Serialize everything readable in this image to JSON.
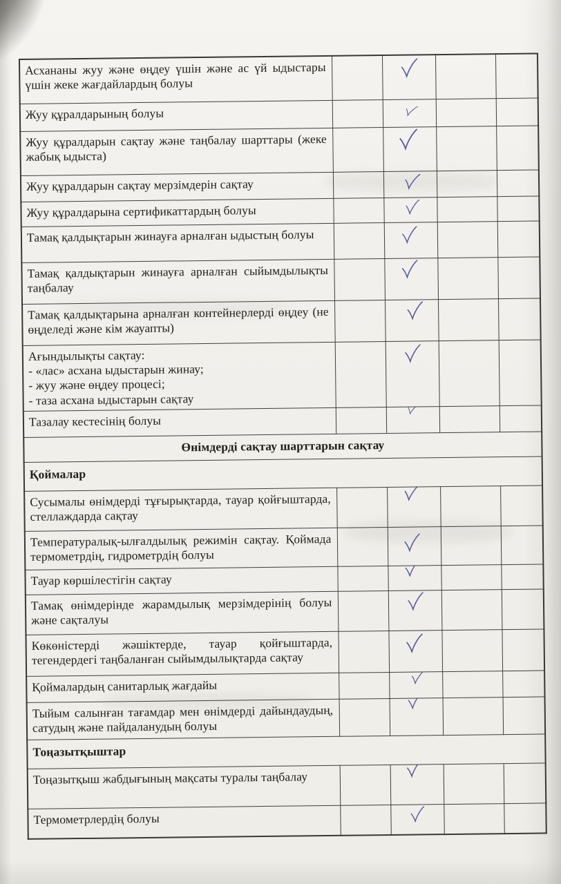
{
  "document": {
    "check_symbol": "✓",
    "check_ink_color": "#575b9f",
    "table": {
      "empty_column_count": 4,
      "checkmark_column": 2,
      "rows": [
        {
          "kind": "item",
          "text": "Асхананы жуу және өңдеу үшін және ас үй ыдыстары үшін жеке жағдайлардың болуы",
          "checked": true
        },
        {
          "kind": "item",
          "text": "Жуу құралдарының болуы",
          "checked": true
        },
        {
          "kind": "item",
          "text": "Жуу құралдарын сақтау және таңбалау шарттары (жеке жабық ыдыста)",
          "checked": true
        },
        {
          "kind": "item",
          "text": "Жуу құралдарын сақтау мерзімдерін сақтау",
          "checked": true
        },
        {
          "kind": "item",
          "text": "Жуу құралдарына сертификаттардың болуы",
          "checked": true
        },
        {
          "kind": "item",
          "text": "Тамақ қалдықтарын жинауға арналған ыдыстың болуы",
          "checked": true
        },
        {
          "kind": "item",
          "text": "Тамақ қалдықтарын жинауға арналған сыйымдылықты таңбалау",
          "checked": true
        },
        {
          "kind": "item",
          "text": "Тамақ қалдықтарына арналған контейнерлерді өңдеу (не өңделеді және кім жауапты)",
          "checked": true
        },
        {
          "kind": "item",
          "lines": [
            "Ағындылықты сақтау:",
            "- «лас» асхана ыдыстарын жинау;",
            "- жуу және өңдеу процесі;",
            "- таза асхана ыдыстарын сақтау"
          ],
          "checked": true
        },
        {
          "kind": "item",
          "text": "Тазалау кестесінің болуы",
          "checked": true
        },
        {
          "kind": "section-center",
          "text": "Өнімдерді сақтау шарттарын сақтау"
        },
        {
          "kind": "section-left",
          "text": "Қоймалар"
        },
        {
          "kind": "item",
          "text": "Сусымалы өнімдерді тұғырықтарда, тауар қойғыштарда, стеллаждарда сақтау",
          "checked": true
        },
        {
          "kind": "item",
          "text": "Температуралық-ылғалдылық режимін сақтау. Қоймада термометрдің, гидрометрдің болуы",
          "checked": true
        },
        {
          "kind": "item",
          "text": "Тауар көршілестігін сақтау",
          "checked": true
        },
        {
          "kind": "item",
          "text": "Тамақ өнімдерінде жарамдылық мерзімдерінің болуы және сақталуы",
          "checked": true
        },
        {
          "kind": "item",
          "text": "Көкөністерді жәшіктерде, тауар қойғыштарда, тегендердегі таңбаланған сыйымдылықтарда сақтау",
          "checked": true
        },
        {
          "kind": "item",
          "text": "Қоймалардың санитарлық жағдайы",
          "checked": true
        },
        {
          "kind": "item",
          "text": "Тыйым салынған тағамдар мен өнімдерді дайындаудың, сатудың және пайдаланудың болуы",
          "checked": true
        },
        {
          "kind": "section-left",
          "text": "Тоңазытқыштар"
        },
        {
          "kind": "item",
          "text": "Тоңазытқыш жабдығының мақсаты туралы таңбалау",
          "checked": true
        },
        {
          "kind": "item",
          "text": "Термометрлердің болуы",
          "checked": true
        }
      ]
    }
  }
}
